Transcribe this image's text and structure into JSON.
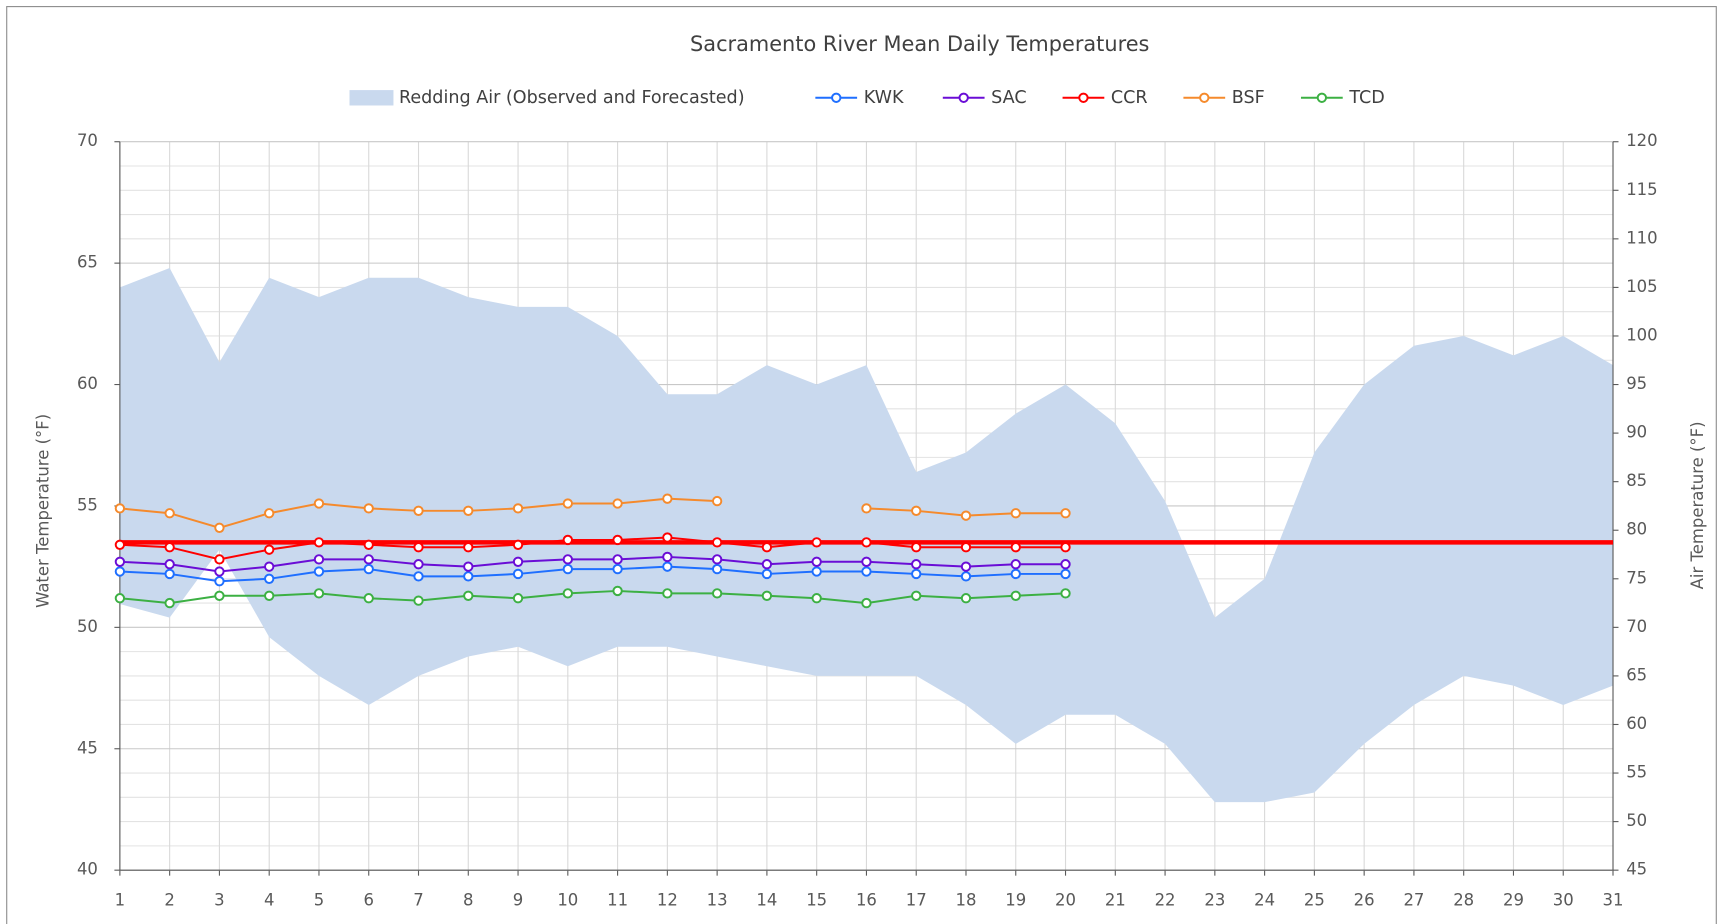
{
  "chart_data": {
    "type": "line",
    "title": "Sacramento River Mean Daily Temperatures",
    "y_label": "Water Temperature (°F)",
    "y2_label": "Air Temperature (°F)",
    "categories": [
      1,
      2,
      3,
      4,
      5,
      6,
      7,
      8,
      9,
      10,
      11,
      12,
      13,
      14,
      15,
      16,
      17,
      18,
      19,
      20,
      21,
      22,
      23,
      24,
      25,
      26,
      27,
      28,
      29,
      30,
      31
    ],
    "ylim": [
      40,
      70
    ],
    "yticks": [
      40,
      45,
      50,
      55,
      60,
      65,
      70
    ],
    "minor_yticks": [
      41,
      42,
      43,
      44,
      46,
      47,
      48,
      49,
      51,
      52,
      53,
      54,
      56,
      57,
      58,
      59,
      61,
      62,
      63,
      64,
      66,
      67,
      68,
      69
    ],
    "y2lim": [
      45,
      120
    ],
    "y2ticks": [
      45,
      50,
      55,
      60,
      65,
      70,
      75,
      80,
      85,
      90,
      95,
      100,
      105,
      110,
      115,
      120
    ],
    "grid": true,
    "legend": "top",
    "reference_line": {
      "value": 53.5,
      "color": "#ff0000"
    },
    "series": [
      {
        "name": "Redding Air (Observed and Forecasted)",
        "type": "area-range",
        "axis": "y2",
        "color": "#c9d9ee",
        "high": [
          105,
          107,
          97.3,
          106,
          104,
          106,
          106,
          104,
          103,
          103,
          100,
          94,
          94,
          97,
          95,
          97,
          86,
          88,
          92,
          95,
          91,
          83,
          71,
          75,
          88,
          95,
          99,
          100,
          98,
          100,
          97
        ],
        "low": [
          72.4,
          71,
          78,
          69,
          65,
          62,
          65,
          67,
          68,
          66,
          68,
          68,
          67,
          66,
          65,
          65,
          65,
          62,
          58,
          61,
          61,
          58,
          52,
          52,
          53,
          58,
          62,
          65,
          64,
          62,
          64
        ]
      },
      {
        "name": "KWK",
        "color": "#1f6fff",
        "values": [
          52.3,
          52.2,
          51.9,
          52.0,
          52.3,
          52.4,
          52.1,
          52.1,
          52.2,
          52.4,
          52.4,
          52.5,
          52.4,
          52.2,
          52.3,
          52.3,
          52.2,
          52.1,
          52.2,
          52.2,
          null,
          null,
          null,
          null,
          null,
          null,
          null,
          null,
          null,
          null,
          null
        ]
      },
      {
        "name": "SAC",
        "color": "#6a0dd6",
        "values": [
          52.7,
          52.6,
          52.3,
          52.5,
          52.8,
          52.8,
          52.6,
          52.5,
          52.7,
          52.8,
          52.8,
          52.9,
          52.8,
          52.6,
          52.7,
          52.7,
          52.6,
          52.5,
          52.6,
          52.6,
          null,
          null,
          null,
          null,
          null,
          null,
          null,
          null,
          null,
          null,
          null
        ]
      },
      {
        "name": "CCR",
        "color": "#ff0000",
        "values": [
          53.4,
          53.3,
          52.8,
          53.2,
          53.5,
          53.4,
          53.3,
          53.3,
          53.4,
          53.6,
          53.6,
          53.7,
          53.5,
          53.3,
          53.5,
          53.5,
          53.3,
          53.3,
          53.3,
          53.3,
          null,
          null,
          null,
          null,
          null,
          null,
          null,
          null,
          null,
          null,
          null
        ]
      },
      {
        "name": "BSF",
        "color": "#f58a2c",
        "values": [
          54.9,
          54.7,
          54.1,
          54.7,
          55.1,
          54.9,
          54.8,
          54.8,
          54.9,
          55.1,
          55.1,
          55.3,
          55.2,
          null,
          null,
          54.9,
          54.8,
          54.6,
          54.7,
          54.7,
          null,
          null,
          null,
          null,
          null,
          null,
          null,
          null,
          null,
          null,
          null
        ]
      },
      {
        "name": "TCD",
        "color": "#3cb043",
        "values": [
          51.2,
          51.0,
          51.3,
          51.3,
          51.4,
          51.2,
          51.1,
          51.3,
          51.2,
          51.4,
          51.5,
          51.4,
          51.4,
          51.3,
          51.2,
          51.0,
          51.3,
          51.2,
          51.3,
          51.4,
          null,
          null,
          null,
          null,
          null,
          null,
          null,
          null,
          null,
          null,
          null
        ]
      }
    ]
  }
}
